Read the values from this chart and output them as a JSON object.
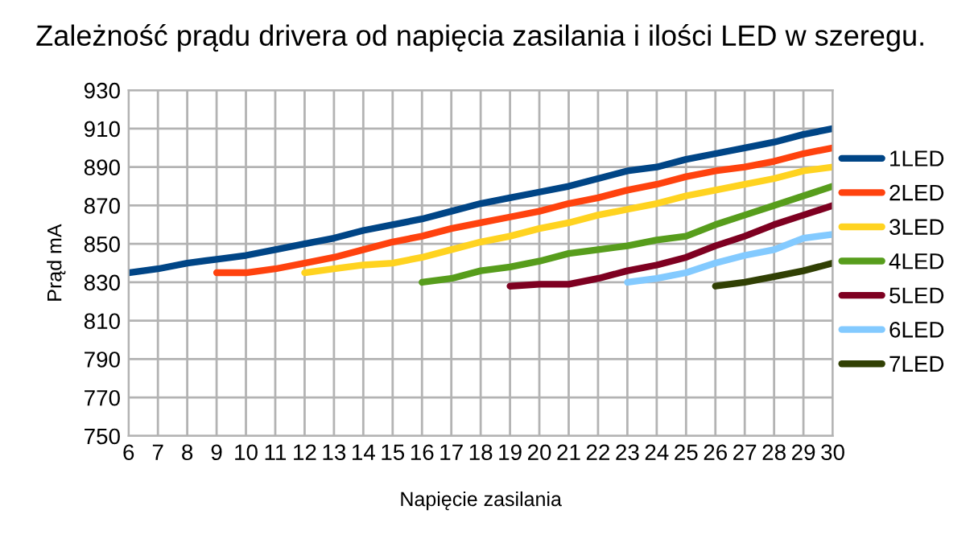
{
  "chart_data": {
    "type": "line",
    "title": "Zależność prądu drivera od napięcia zasilania i ilości LED w szeregu.",
    "xlabel": "Napięcie zasilania",
    "ylabel": "Prąd mA",
    "xlim": [
      6,
      30
    ],
    "xticks": [
      6,
      7,
      8,
      9,
      10,
      11,
      12,
      13,
      14,
      15,
      16,
      17,
      18,
      19,
      20,
      21,
      22,
      23,
      24,
      25,
      26,
      27,
      28,
      29,
      30
    ],
    "ylim": [
      750,
      930
    ],
    "yticks": [
      750,
      770,
      790,
      810,
      830,
      850,
      870,
      890,
      910,
      930
    ],
    "grid": true,
    "legend": "right",
    "marker": "none",
    "line_style": "solid",
    "series": [
      {
        "name": "1LED",
        "color": "#004586",
        "x": [
          6,
          7,
          8,
          9,
          10,
          11,
          12,
          13,
          14,
          15,
          16,
          17,
          18,
          19,
          20,
          21,
          22,
          23,
          24,
          25,
          26,
          27,
          28,
          29,
          30
        ],
        "values": [
          835,
          837,
          840,
          842,
          844,
          847,
          850,
          853,
          857,
          860,
          863,
          867,
          871,
          874,
          877,
          880,
          884,
          888,
          890,
          894,
          897,
          900,
          903,
          907,
          910
        ]
      },
      {
        "name": "2LED",
        "color": "#ff420e",
        "x": [
          9,
          10,
          11,
          12,
          13,
          14,
          15,
          16,
          17,
          18,
          19,
          20,
          21,
          22,
          23,
          24,
          25,
          26,
          27,
          28,
          29,
          30
        ],
        "values": [
          835,
          835,
          837,
          840,
          843,
          847,
          851,
          854,
          858,
          861,
          864,
          867,
          871,
          874,
          878,
          881,
          885,
          888,
          890,
          893,
          897,
          900
        ]
      },
      {
        "name": "3LED",
        "color": "#ffd320",
        "x": [
          12,
          13,
          14,
          15,
          16,
          17,
          18,
          19,
          20,
          21,
          22,
          23,
          24,
          25,
          26,
          27,
          28,
          29,
          30
        ],
        "values": [
          835,
          837,
          839,
          840,
          843,
          847,
          851,
          854,
          858,
          861,
          865,
          868,
          871,
          875,
          878,
          881,
          884,
          888,
          890
        ]
      },
      {
        "name": "4LED",
        "color": "#579d1c",
        "x": [
          16,
          17,
          18,
          19,
          20,
          21,
          22,
          23,
          24,
          25,
          26,
          27,
          28,
          29,
          30
        ],
        "values": [
          830,
          832,
          836,
          838,
          841,
          845,
          847,
          849,
          852,
          854,
          860,
          865,
          870,
          875,
          880
        ]
      },
      {
        "name": "5LED",
        "color": "#7e0021",
        "x": [
          19,
          20,
          21,
          22,
          23,
          24,
          25,
          26,
          27,
          28,
          29,
          30
        ],
        "values": [
          828,
          829,
          829,
          832,
          836,
          839,
          843,
          849,
          854,
          860,
          865,
          870
        ]
      },
      {
        "name": "6LED",
        "color": "#83caff",
        "x": [
          23,
          24,
          25,
          26,
          27,
          28,
          29,
          30
        ],
        "values": [
          830,
          832,
          835,
          840,
          844,
          847,
          853,
          855
        ]
      },
      {
        "name": "7LED",
        "color": "#314004",
        "x": [
          26,
          27,
          28,
          29,
          30
        ],
        "values": [
          828,
          830,
          833,
          836,
          840
        ]
      }
    ]
  }
}
